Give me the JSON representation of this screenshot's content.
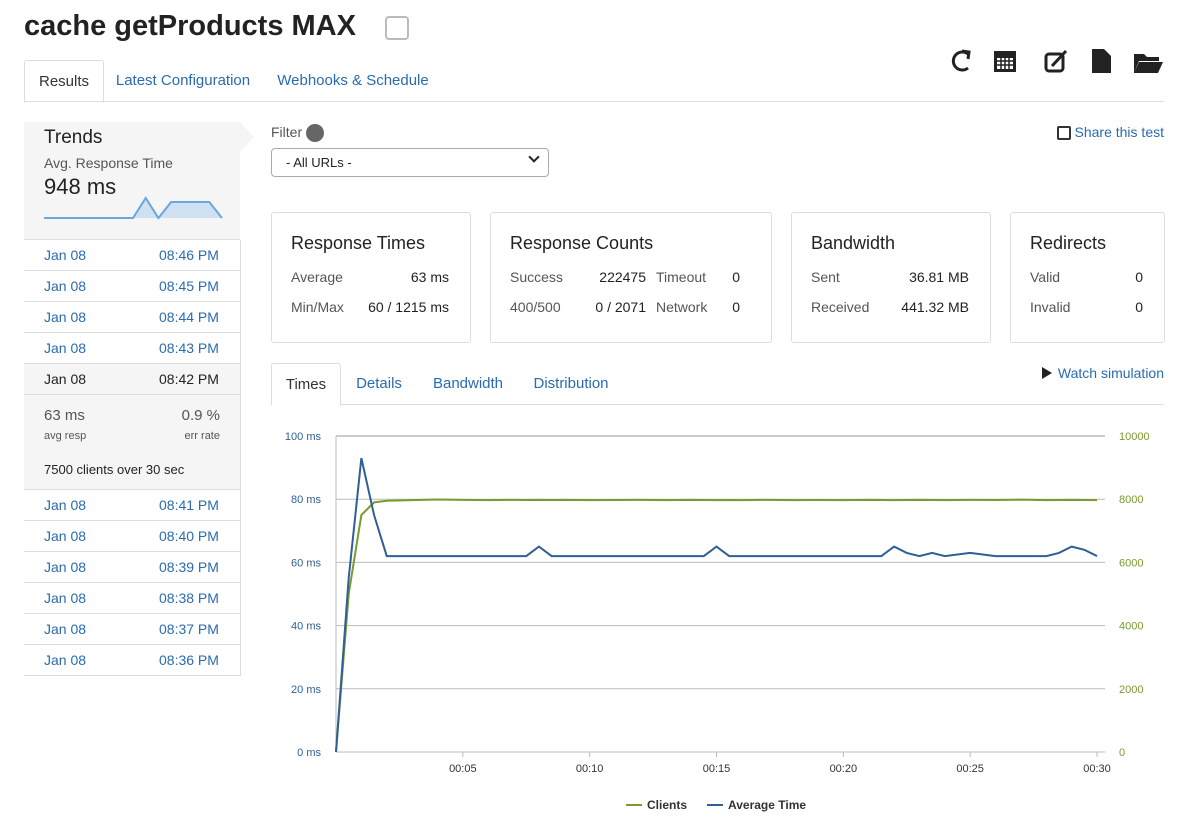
{
  "header": {
    "title": "cache getProducts MAX"
  },
  "tabs": [
    "Results",
    "Latest Configuration",
    "Webhooks & Schedule"
  ],
  "sidebar": {
    "title": "Trends",
    "metric": "Avg. Response Time",
    "value": "948 ms",
    "sparkline": [
      0,
      0,
      0,
      0,
      0,
      0,
      0,
      0,
      5,
      0,
      4,
      4,
      4,
      4,
      0
    ],
    "runs_before": [
      {
        "date": "Jan 08",
        "time": "08:46 PM"
      },
      {
        "date": "Jan 08",
        "time": "08:45 PM"
      },
      {
        "date": "Jan 08",
        "time": "08:44 PM"
      },
      {
        "date": "Jan 08",
        "time": "08:43 PM"
      }
    ],
    "selected": {
      "date": "Jan 08",
      "time": "08:42 PM",
      "avg": "63 ms",
      "avg_label": "avg resp",
      "err": "0.9 %",
      "err_label": "err rate",
      "clients": "7500",
      "clients_text": "clients over",
      "duration": "30",
      "duration_unit": "sec"
    },
    "runs_after": [
      {
        "date": "Jan 08",
        "time": "08:41 PM"
      },
      {
        "date": "Jan 08",
        "time": "08:40 PM"
      },
      {
        "date": "Jan 08",
        "time": "08:39 PM"
      },
      {
        "date": "Jan 08",
        "time": "08:38 PM"
      },
      {
        "date": "Jan 08",
        "time": "08:37 PM"
      },
      {
        "date": "Jan 08",
        "time": "08:36 PM"
      }
    ]
  },
  "filter": {
    "label": "Filter",
    "option": "- All URLs -"
  },
  "share": "Share this test",
  "cards": [
    {
      "title": "Response Times",
      "rows": [
        [
          "Average",
          "63 ms"
        ],
        [
          "Min/Max",
          "60 / 1215 ms"
        ]
      ]
    },
    {
      "title": "Response Counts",
      "rows": [
        [
          "Success",
          "222475",
          "Timeout",
          "0"
        ],
        [
          "400/500",
          "0 / 2071",
          "Network",
          "0"
        ]
      ]
    },
    {
      "title": "Bandwidth",
      "rows": [
        [
          "Sent",
          "36.81 MB"
        ],
        [
          "Received",
          "441.32 MB"
        ]
      ]
    },
    {
      "title": "Redirects",
      "rows": [
        [
          "Valid",
          "0"
        ],
        [
          "Invalid",
          "0"
        ]
      ]
    }
  ],
  "chart_tabs": [
    "Times",
    "Details",
    "Bandwidth",
    "Distribution"
  ],
  "watch": "Watch simulation",
  "chart_data": {
    "type": "line",
    "x": [
      0,
      0.5,
      1,
      1.5,
      2,
      3,
      4,
      5,
      6,
      7,
      7.5,
      8,
      8.5,
      9,
      10,
      11,
      12,
      13,
      14,
      14.5,
      15,
      15.5,
      16,
      17,
      18,
      19,
      20,
      21,
      21.5,
      22,
      22.5,
      23,
      23.5,
      24,
      25,
      26,
      27,
      28,
      28.5,
      29,
      29.5,
      30
    ],
    "xlim": [
      0,
      30
    ],
    "xticks": [
      {
        "value": 5,
        "label": "00:05"
      },
      {
        "value": 10,
        "label": "00:10"
      },
      {
        "value": 15,
        "label": "00:15"
      },
      {
        "value": 20,
        "label": "00:20"
      },
      {
        "value": 25,
        "label": "00:25"
      },
      {
        "value": 30,
        "label": "00:30"
      }
    ],
    "ylim": [
      0,
      100
    ],
    "yticks": [
      {
        "value": 0,
        "label": "0 ms"
      },
      {
        "value": 20,
        "label": "20 ms"
      },
      {
        "value": 40,
        "label": "40 ms"
      },
      {
        "value": 60,
        "label": "60 ms"
      },
      {
        "value": 80,
        "label": "80 ms"
      },
      {
        "value": 100,
        "label": "100 ms"
      }
    ],
    "y2lim": [
      0,
      10000
    ],
    "y2ticks": [
      0,
      2000,
      4000,
      6000,
      8000,
      10000
    ],
    "grid": true,
    "legend": "bottom",
    "series": [
      {
        "name": "Clients",
        "color": "#7a9a2e",
        "axis": "y2",
        "values": [
          0,
          5000,
          7500,
          7900,
          7950,
          7970,
          7990,
          7980,
          7970,
          7980,
          7975,
          7980,
          7975,
          7980,
          7970,
          7975,
          7980,
          7970,
          7980,
          7975,
          7970,
          7975,
          7970,
          7980,
          7970,
          7975,
          7970,
          7980,
          7975,
          7970,
          7975,
          7980,
          7975,
          7970,
          7980,
          7975,
          7985,
          7970,
          7975,
          7980,
          7975,
          7970
        ]
      },
      {
        "name": "Average Time",
        "color": "#2f5f96",
        "axis": "y",
        "values": [
          0,
          55,
          93,
          75,
          62,
          62,
          62,
          62,
          62,
          62,
          62,
          65,
          62,
          62,
          62,
          62,
          62,
          62,
          62,
          62,
          65,
          62,
          62,
          62,
          62,
          62,
          62,
          62,
          62,
          65,
          63,
          62,
          63,
          62,
          63,
          62,
          62,
          62,
          63,
          65,
          64,
          62
        ]
      }
    ]
  }
}
